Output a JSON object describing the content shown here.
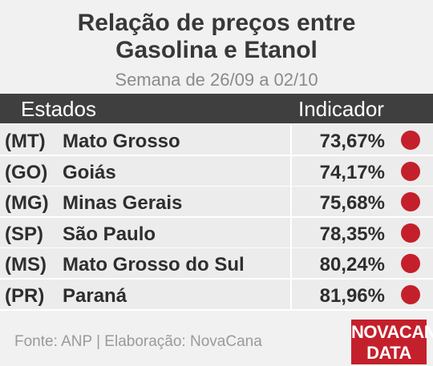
{
  "header": {
    "title": [
      "Relação de preços entre",
      "Gasolina e Etanol"
    ],
    "subtitle": "Semana de 26/09 a 02/10"
  },
  "table": {
    "columns": [
      "Estados",
      "Indicador"
    ],
    "rows": [
      [
        "(MT)",
        "Mato Grosso",
        "73,67%"
      ],
      [
        "(GO)",
        "Goiás",
        "74,17%"
      ],
      [
        "(MG)",
        "Minas Gerais",
        "75,68%"
      ],
      [
        "(SP)",
        "São Paulo",
        "78,35%"
      ],
      [
        "(MS)",
        "Mato Grosso do Sul",
        "80,24%"
      ],
      [
        "(PR)",
        "Paraná",
        "81,96%"
      ]
    ]
  },
  "footer": {
    "source": "Fonte: ANP | Elaboração: NovaCana",
    "logo": [
      "NOVACANA",
      "DATA"
    ]
  }
}
